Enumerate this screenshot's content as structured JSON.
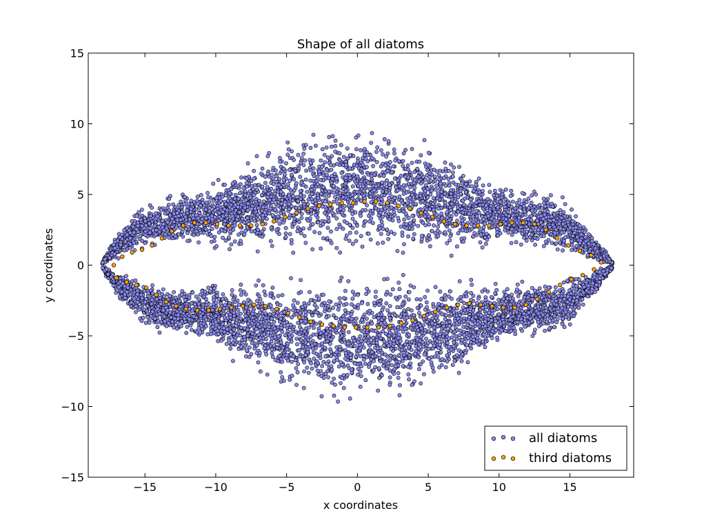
{
  "chart_data": {
    "type": "scatter",
    "title": "Shape of all diatoms",
    "xlabel": "x coordinates",
    "ylabel": "y coordinates",
    "xlim": [
      -19,
      19.5
    ],
    "ylim": [
      -15,
      15
    ],
    "xticks": [
      -15,
      -10,
      -5,
      0,
      5,
      10,
      15
    ],
    "xtick_labels": [
      "−15",
      "−10",
      "−5",
      "0",
      "5",
      "10",
      "15"
    ],
    "yticks": [
      -15,
      -10,
      -5,
      0,
      5,
      10,
      15
    ],
    "ytick_labels": [
      "−15",
      "−10",
      "−5",
      "0",
      "5",
      "10",
      "15"
    ],
    "grid": false,
    "legend": {
      "position": "lower-right"
    },
    "series": [
      {
        "name": "all diatoms",
        "color": "#8c8cf0",
        "edge_color": "#000000",
        "description_of_shape": "dense symmetric lens-shaped cloud of several thousand points spanning x -18 to 18 and y -10.5 to 10.5, with an empty slit around y = 0",
        "x": [
          -18,
          -17,
          -16,
          -15,
          -14,
          -13,
          -12,
          -11,
          -10,
          -9,
          -8,
          -7,
          -6,
          -5,
          -4,
          -3,
          -2,
          -1,
          0,
          1,
          2,
          3,
          4,
          5,
          6,
          7,
          8,
          9,
          10,
          11,
          12,
          13,
          14,
          15,
          16,
          17,
          18
        ],
        "y_upper_max": [
          0.3,
          2.3,
          3.6,
          4.6,
          5.0,
          5.3,
          5.5,
          5.6,
          6.0,
          6.8,
          7.5,
          8.2,
          8.7,
          9.2,
          9.6,
          9.9,
          10.1,
          10.3,
          10.4,
          10.3,
          10.1,
          9.9,
          9.6,
          9.2,
          8.7,
          8.2,
          7.5,
          6.8,
          6.0,
          5.6,
          5.5,
          5.4,
          5.2,
          4.5,
          3.0,
          1.8,
          0.3
        ],
        "y_upper_min": [
          0.0,
          0.3,
          0.6,
          0.9,
          1.1,
          1.2,
          1.3,
          1.2,
          1.0,
          0.8,
          0.6,
          0.5,
          0.4,
          0.4,
          0.3,
          0.3,
          0.3,
          0.3,
          0.3,
          0.3,
          0.3,
          0.3,
          0.3,
          0.4,
          0.4,
          0.5,
          0.6,
          0.8,
          1.0,
          1.1,
          1.0,
          0.9,
          0.7,
          0.5,
          0.3,
          0.1,
          0.0
        ],
        "y_lower_min": [
          -0.3,
          -2.3,
          -3.6,
          -4.6,
          -5.0,
          -5.3,
          -5.5,
          -5.6,
          -6.0,
          -6.8,
          -7.5,
          -8.2,
          -8.7,
          -9.2,
          -9.6,
          -9.9,
          -10.1,
          -10.3,
          -10.4,
          -10.3,
          -10.1,
          -9.9,
          -9.6,
          -9.2,
          -8.7,
          -8.2,
          -7.5,
          -6.8,
          -6.0,
          -5.6,
          -5.5,
          -5.4,
          -5.2,
          -4.5,
          -3.0,
          -1.8,
          -0.3
        ],
        "y_lower_max": [
          0.0,
          -0.3,
          -0.6,
          -0.9,
          -1.1,
          -1.2,
          -1.3,
          -1.2,
          -1.0,
          -0.8,
          -0.6,
          -0.5,
          -0.4,
          -0.4,
          -0.3,
          -0.3,
          -0.3,
          -0.3,
          -0.3,
          -0.3,
          -0.3,
          -0.3,
          -0.3,
          -0.4,
          -0.4,
          -0.5,
          -0.6,
          -0.8,
          -1.0,
          -1.1,
          -1.0,
          -0.9,
          -0.7,
          -0.5,
          -0.3,
          -0.1,
          0.0
        ]
      },
      {
        "name": "third diatoms",
        "color": "#ffa500",
        "edge_color": "#000000",
        "x": [
          -17.2,
          -16.6,
          -15.9,
          -15.2,
          -14.5,
          -13.8,
          -13.1,
          -12.3,
          -11.5,
          -10.7,
          -9.9,
          -9.1,
          -8.3,
          -7.5,
          -6.7,
          -5.9,
          -5.1,
          -4.3,
          -3.5,
          -2.7,
          -1.9,
          -1.1,
          -0.3,
          0.5,
          1.3,
          2.1,
          2.9,
          3.7,
          4.5,
          5.3,
          6.1,
          6.9,
          7.7,
          8.5,
          9.3,
          10.1,
          10.9,
          11.7,
          12.5,
          13.3,
          14.1,
          14.9,
          15.7,
          16.5,
          17.2,
          -17.0,
          -16.3,
          -15.6,
          -14.9,
          -14.2,
          -13.5,
          -12.8,
          -12.1,
          -11.3,
          -10.5,
          -9.7,
          -8.9,
          -8.1,
          -7.3,
          -6.5,
          -5.7,
          -4.9,
          -4.1,
          -3.3,
          -2.5,
          -1.7,
          -0.9,
          -0.1,
          0.7,
          1.5,
          2.3,
          3.1,
          3.9,
          4.7,
          5.5,
          6.3,
          7.1,
          7.9,
          8.7,
          9.5,
          10.3,
          11.1,
          11.9,
          12.7,
          13.5,
          14.3,
          15.1,
          15.9,
          16.7
        ],
        "y": [
          0.0,
          0.6,
          0.9,
          1.1,
          1.4,
          1.9,
          2.4,
          2.8,
          3.0,
          3.0,
          2.9,
          2.8,
          2.8,
          2.8,
          2.9,
          3.1,
          3.4,
          3.7,
          4.0,
          4.2,
          4.3,
          4.4,
          4.4,
          4.5,
          4.5,
          4.4,
          4.2,
          4.0,
          3.7,
          3.4,
          3.1,
          2.9,
          2.8,
          2.8,
          2.8,
          2.9,
          3.0,
          3.0,
          2.9,
          2.5,
          1.9,
          1.4,
          1.0,
          0.7,
          0.2,
          -0.9,
          -1.2,
          -1.4,
          -1.6,
          -2.1,
          -2.6,
          -2.9,
          -3.1,
          -3.2,
          -3.2,
          -3.1,
          -3.0,
          -2.9,
          -2.8,
          -2.9,
          -3.1,
          -3.4,
          -3.7,
          -4.0,
          -4.2,
          -4.3,
          -4.4,
          -4.4,
          -4.4,
          -4.4,
          -4.3,
          -4.1,
          -3.9,
          -3.6,
          -3.3,
          -3.0,
          -2.8,
          -2.7,
          -2.8,
          -2.9,
          -3.0,
          -3.0,
          -2.8,
          -2.4,
          -1.9,
          -1.4,
          -1.0,
          -0.7,
          -0.3
        ]
      }
    ]
  }
}
